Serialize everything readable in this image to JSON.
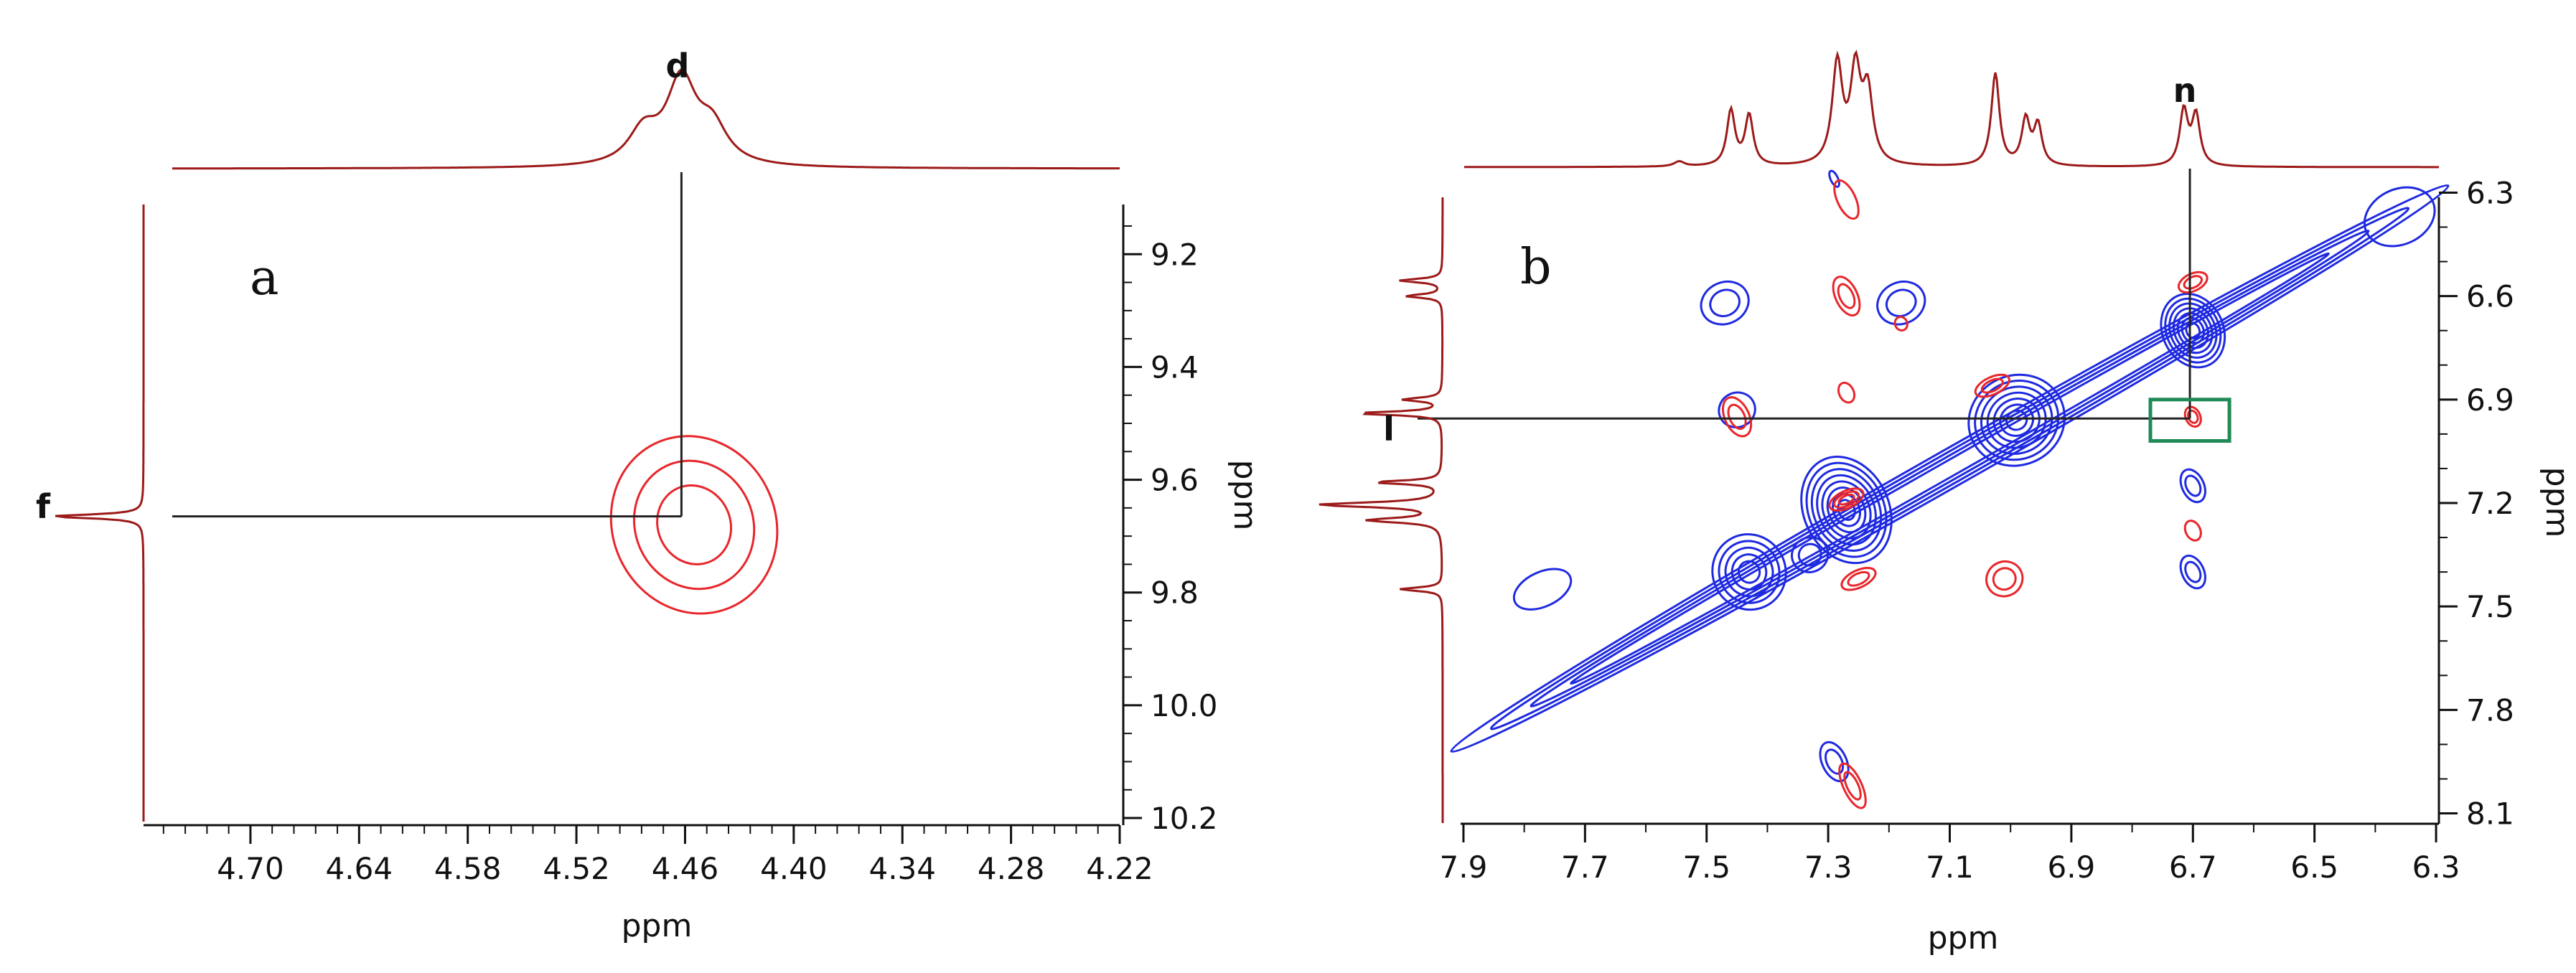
{
  "chart_data": [
    {
      "type": "contour",
      "panel_label": "a",
      "xlabel": "ppm",
      "ylabel": "ppm",
      "xlim": [
        4.74,
        4.22
      ],
      "ylim": [
        9.08,
        10.2
      ],
      "xticks": [
        4.7,
        4.64,
        4.58,
        4.52,
        4.46,
        4.4,
        4.34,
        4.28,
        4.22
      ],
      "xtick_labels": [
        "4.70",
        "4.64",
        "4.58",
        "4.52",
        "4.46",
        "4.40",
        "4.34",
        "4.28",
        "4.22"
      ],
      "yticks": [
        9.2,
        9.4,
        9.6,
        9.8,
        10.0,
        10.2
      ],
      "ytick_labels": [
        "9.2",
        "9.4",
        "9.6",
        "9.8",
        "10.0",
        "10.2"
      ],
      "top_trace_peaks": [
        {
          "x": 4.483,
          "h": 0.35,
          "w": 0.01
        },
        {
          "x": 4.462,
          "h": 0.9,
          "w": 0.01
        },
        {
          "x": 4.445,
          "h": 0.38,
          "w": 0.01
        }
      ],
      "left_trace_peaks": [
        {
          "y": 9.665,
          "h": 1.0,
          "w": 0.004
        }
      ],
      "contours": [
        {
          "color": "#e8262b",
          "cx": 4.455,
          "cy": 9.68,
          "rx": 0.045,
          "ry": 0.16,
          "levels": 3
        }
      ],
      "crosspeak_labels": [
        {
          "text": "d",
          "axis": "top",
          "ppm": 4.462
        },
        {
          "text": "f",
          "axis": "left",
          "ppm": 9.665
        }
      ],
      "guide_point": {
        "x": 4.462,
        "y": 9.665
      }
    },
    {
      "type": "contour",
      "panel_label": "b",
      "xlabel": "ppm",
      "ylabel": "ppm",
      "xlim": [
        7.92,
        6.28
      ],
      "ylim": [
        6.22,
        8.18
      ],
      "xticks": [
        7.9,
        7.7,
        7.5,
        7.3,
        7.1,
        6.9,
        6.7,
        6.5,
        6.3
      ],
      "xtick_labels": [
        "7.9",
        "7.7",
        "7.5",
        "7.3",
        "7.1",
        "6.9",
        "6.7",
        "6.5",
        "6.3"
      ],
      "yticks": [
        6.3,
        6.6,
        6.9,
        7.2,
        7.5,
        7.8,
        8.1
      ],
      "ytick_labels": [
        "6.3",
        "6.6",
        "6.9",
        "7.2",
        "7.5",
        "7.8",
        "8.1"
      ],
      "top_trace_peaks": [
        {
          "x": 7.46,
          "h": 0.55,
          "w": 0.008
        },
        {
          "x": 7.43,
          "h": 0.5,
          "w": 0.008
        },
        {
          "x": 7.285,
          "h": 1.0,
          "w": 0.01
        },
        {
          "x": 7.255,
          "h": 0.9,
          "w": 0.01
        },
        {
          "x": 7.235,
          "h": 0.7,
          "w": 0.01
        },
        {
          "x": 7.025,
          "h": 0.92,
          "w": 0.008
        },
        {
          "x": 6.975,
          "h": 0.45,
          "w": 0.008
        },
        {
          "x": 6.955,
          "h": 0.4,
          "w": 0.008
        },
        {
          "x": 6.715,
          "h": 0.55,
          "w": 0.008
        },
        {
          "x": 6.695,
          "h": 0.5,
          "w": 0.008
        },
        {
          "x": 7.545,
          "h": 0.05,
          "w": 0.01
        }
      ],
      "left_trace_peaks": [
        {
          "y": 6.555,
          "h": 0.35,
          "w": 0.006
        },
        {
          "y": 6.6,
          "h": 0.3,
          "w": 0.006
        },
        {
          "y": 6.9,
          "h": 0.32,
          "w": 0.006
        },
        {
          "y": 6.94,
          "h": 0.7,
          "w": 0.006
        },
        {
          "y": 7.14,
          "h": 0.55,
          "w": 0.006
        },
        {
          "y": 7.205,
          "h": 1.0,
          "w": 0.008
        },
        {
          "y": 7.25,
          "h": 0.6,
          "w": 0.008
        },
        {
          "y": 7.45,
          "h": 0.35,
          "w": 0.006
        }
      ],
      "contours": [
        {
          "color": "#1f2ae0",
          "cx": 6.7,
          "cy": 6.7,
          "rx": 0.05,
          "ry": 0.11,
          "levels": 7
        },
        {
          "color": "#1f2ae0",
          "cx": 6.99,
          "cy": 6.96,
          "rx": 0.08,
          "ry": 0.13,
          "levels": 7
        },
        {
          "color": "#1f2ae0",
          "cx": 7.27,
          "cy": 7.22,
          "rx": 0.07,
          "ry": 0.16,
          "levels": 8
        },
        {
          "color": "#1f2ae0",
          "cx": 7.43,
          "cy": 7.4,
          "rx": 0.06,
          "ry": 0.11,
          "levels": 5
        },
        {
          "color": "#1f2ae0",
          "cx": 7.33,
          "cy": 7.35,
          "rx": 0.03,
          "ry": 0.05,
          "levels": 2
        },
        {
          "color": "#1f2ae0",
          "cx": 7.47,
          "cy": 6.62,
          "rx": 0.04,
          "ry": 0.06,
          "levels": 2
        },
        {
          "color": "#1f2ae0",
          "cx": 7.18,
          "cy": 6.62,
          "rx": 0.04,
          "ry": 0.06,
          "levels": 2
        },
        {
          "color": "#1f2ae0",
          "cx": 7.45,
          "cy": 6.93,
          "rx": 0.03,
          "ry": 0.05,
          "levels": 1
        },
        {
          "color": "#1f2ae0",
          "cx": 7.29,
          "cy": 6.26,
          "rx": 0.006,
          "ry": 0.025,
          "levels": 1
        },
        {
          "color": "#1f2ae0",
          "cx": 6.7,
          "cy": 7.15,
          "rx": 0.018,
          "ry": 0.05,
          "levels": 2
        },
        {
          "color": "#1f2ae0",
          "cx": 6.7,
          "cy": 7.4,
          "rx": 0.018,
          "ry": 0.05,
          "levels": 2
        },
        {
          "color": "#1f2ae0",
          "cx": 7.29,
          "cy": 7.95,
          "rx": 0.02,
          "ry": 0.06,
          "levels": 2
        },
        {
          "color": "#1f2ae0",
          "cx": 6.36,
          "cy": 6.37,
          "rx": 0.06,
          "ry": 0.08,
          "levels": 1
        },
        {
          "color": "#1f2ae0",
          "cx": 7.77,
          "cy": 7.45,
          "rx": 0.05,
          "ry": 0.05,
          "levels": 1
        },
        {
          "color": "#e8262b",
          "cx": 7.27,
          "cy": 7.19,
          "rx": 0.03,
          "ry": 0.025,
          "levels": 3
        },
        {
          "color": "#e8262b",
          "cx": 7.25,
          "cy": 7.42,
          "rx": 0.03,
          "ry": 0.025,
          "levels": 2
        },
        {
          "color": "#e8262b",
          "cx": 7.03,
          "cy": 6.86,
          "rx": 0.03,
          "ry": 0.025,
          "levels": 2
        },
        {
          "color": "#e8262b",
          "cx": 6.7,
          "cy": 6.56,
          "rx": 0.025,
          "ry": 0.025,
          "levels": 2
        },
        {
          "color": "#e8262b",
          "cx": 6.7,
          "cy": 6.95,
          "rx": 0.012,
          "ry": 0.03,
          "levels": 2
        },
        {
          "color": "#e8262b",
          "cx": 6.7,
          "cy": 7.28,
          "rx": 0.012,
          "ry": 0.03,
          "levels": 1
        },
        {
          "color": "#e8262b",
          "cx": 7.45,
          "cy": 6.95,
          "rx": 0.02,
          "ry": 0.06,
          "levels": 2
        },
        {
          "color": "#e8262b",
          "cx": 7.27,
          "cy": 6.6,
          "rx": 0.018,
          "ry": 0.06,
          "levels": 2
        },
        {
          "color": "#e8262b",
          "cx": 7.27,
          "cy": 6.88,
          "rx": 0.012,
          "ry": 0.03,
          "levels": 1
        },
        {
          "color": "#e8262b",
          "cx": 7.01,
          "cy": 7.42,
          "rx": 0.03,
          "ry": 0.05,
          "levels": 2
        },
        {
          "color": "#e8262b",
          "cx": 7.26,
          "cy": 8.02,
          "rx": 0.015,
          "ry": 0.07,
          "levels": 2
        },
        {
          "color": "#e8262b",
          "cx": 7.27,
          "cy": 6.32,
          "rx": 0.015,
          "ry": 0.06,
          "levels": 1
        },
        {
          "color": "#e8262b",
          "cx": 7.18,
          "cy": 6.68,
          "rx": 0.01,
          "ry": 0.02,
          "levels": 1
        }
      ],
      "diagonal": {
        "color": "#1f2ae0",
        "from": 7.92,
        "to": 6.28,
        "levels": 4
      },
      "crosspeak_labels": [
        {
          "text": "n",
          "axis": "top",
          "ppm": 6.705
        },
        {
          "text": "l",
          "axis": "left",
          "ppm": 6.955
        }
      ],
      "guide_point": {
        "x": 6.705,
        "y": 6.955
      },
      "highlight_box": {
        "color": "#1f8a56",
        "x": [
          6.77,
          6.64
        ],
        "y": [
          6.9,
          7.02
        ]
      }
    }
  ]
}
